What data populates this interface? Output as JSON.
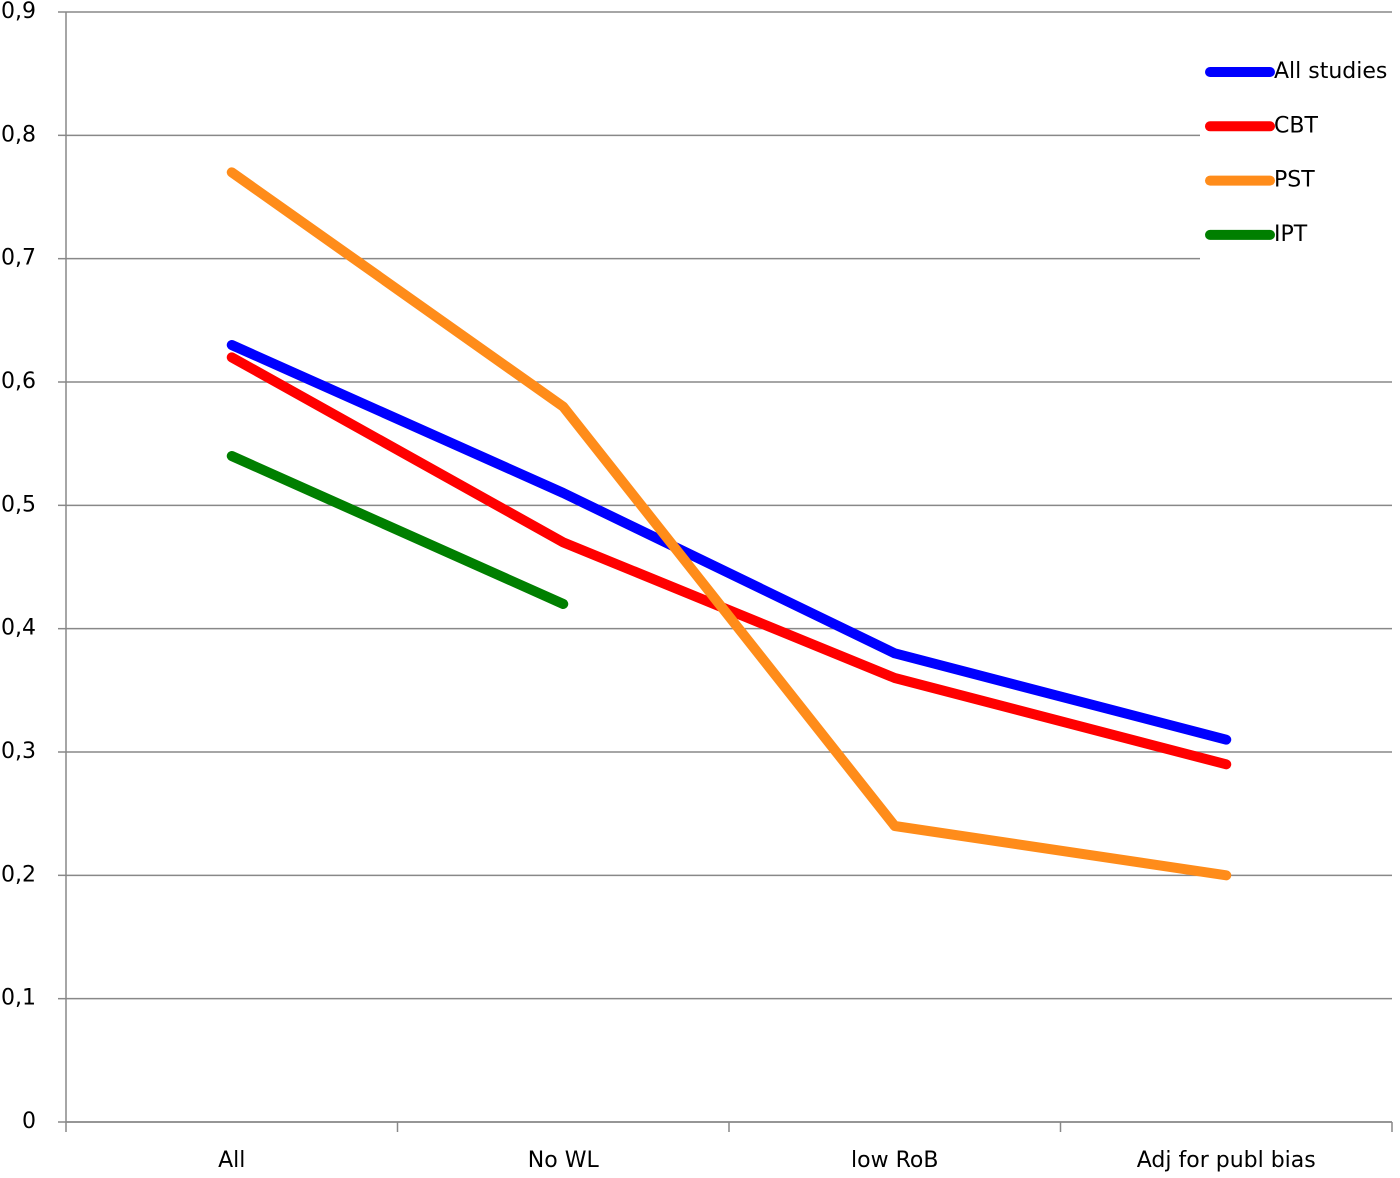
{
  "chart_data": {
    "type": "line",
    "categories": [
      "All",
      "No WL",
      "low RoB",
      "Adj for publ bias"
    ],
    "series": [
      {
        "name": "All studies",
        "color": "#0000ff",
        "values": [
          0.63,
          0.51,
          0.38,
          0.31
        ]
      },
      {
        "name": "CBT",
        "color": "#ff0000",
        "values": [
          0.62,
          0.47,
          0.36,
          0.29
        ]
      },
      {
        "name": "PST",
        "color": "#ff8c1a",
        "values": [
          0.77,
          0.58,
          0.24,
          0.2
        ]
      },
      {
        "name": "IPT",
        "color": "#007f00",
        "values": [
          0.54,
          0.42,
          null,
          null
        ]
      }
    ],
    "ylim": [
      0,
      0.9
    ],
    "yticks": [
      0,
      {
        "value": 0.1,
        "label": "0,1"
      },
      {
        "value": 0.2,
        "label": "0,2"
      },
      {
        "value": 0.3,
        "label": "0,3"
      },
      {
        "value": 0.4,
        "label": "0,4"
      },
      {
        "value": 0.5,
        "label": "0,5"
      },
      {
        "value": 0.6,
        "label": "0,6"
      },
      {
        "value": 0.7,
        "label": "0,7"
      },
      {
        "value": 0.8,
        "label": "0,8"
      },
      {
        "value": 0.9,
        "label": "0,9"
      }
    ],
    "grid": true,
    "legend": "top-right"
  }
}
